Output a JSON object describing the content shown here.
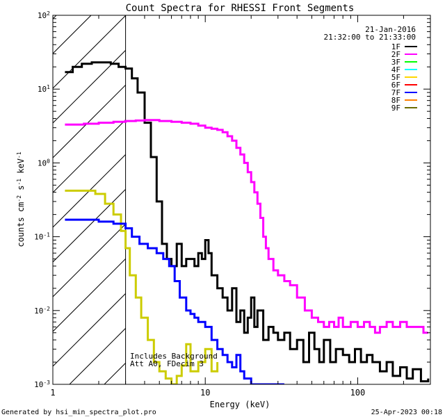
{
  "chart_data": {
    "type": "line",
    "title": "Count Spectra for RHESSI Front Segments",
    "xlabel": "Energy (keV)",
    "ylabel_parts": [
      "counts cm",
      "-2",
      " s",
      "-1",
      " keV",
      "-1"
    ],
    "x_scale": "log",
    "y_scale": "log",
    "xlim": [
      1,
      300
    ],
    "ylim": [
      0.001,
      100
    ],
    "x_ticks": [
      {
        "v": 1,
        "label": "1"
      },
      {
        "v": 10,
        "label": "10"
      },
      {
        "v": 100,
        "label": "100"
      }
    ],
    "y_ticks": [
      {
        "v": 0.001,
        "m": "10",
        "e": "-3"
      },
      {
        "v": 0.01,
        "m": "10",
        "e": "-2"
      },
      {
        "v": 0.1,
        "m": "10",
        "e": "-1"
      },
      {
        "v": 1,
        "m": "10",
        "e": "0"
      },
      {
        "v": 10,
        "m": "10",
        "e": "1"
      },
      {
        "v": 100,
        "m": "10",
        "e": "2"
      }
    ],
    "shaded_region_x": [
      1,
      3
    ],
    "date": "21-Jan-2016",
    "time_range": "21:32:00 to 21:33:00",
    "annotation_lines": [
      "Includes Background",
      "Att A0, FDecim 3"
    ],
    "legend": [
      {
        "name": "1F",
        "color": "#000000"
      },
      {
        "name": "2F",
        "color": "#ff00ff"
      },
      {
        "name": "3F",
        "color": "#00ff00"
      },
      {
        "name": "4F",
        "color": "#00ffff"
      },
      {
        "name": "5F",
        "color": "#ffd700"
      },
      {
        "name": "6F",
        "color": "#ff0000"
      },
      {
        "name": "7F",
        "color": "#0000ff"
      },
      {
        "name": "8F",
        "color": "#ff8000"
      },
      {
        "name": "9F",
        "color": "#6b6b00"
      }
    ],
    "series": [
      {
        "name": "1F",
        "color": "#000000",
        "points": [
          [
            1.2,
            17
          ],
          [
            1.35,
            20
          ],
          [
            1.55,
            22
          ],
          [
            1.8,
            23
          ],
          [
            2.1,
            23
          ],
          [
            2.4,
            22
          ],
          [
            2.7,
            20
          ],
          [
            3.0,
            19
          ],
          [
            3.3,
            14
          ],
          [
            3.6,
            9
          ],
          [
            4.0,
            3.5
          ],
          [
            4.4,
            1.2
          ],
          [
            4.8,
            0.3
          ],
          [
            5.2,
            0.08
          ],
          [
            5.6,
            0.05
          ],
          [
            6.0,
            0.04
          ],
          [
            6.5,
            0.08
          ],
          [
            7.0,
            0.04
          ],
          [
            7.5,
            0.05
          ],
          [
            8.0,
            0.05
          ],
          [
            8.5,
            0.04
          ],
          [
            9.0,
            0.06
          ],
          [
            9.5,
            0.05
          ],
          [
            10,
            0.09
          ],
          [
            10.5,
            0.06
          ],
          [
            11,
            0.03
          ],
          [
            12,
            0.02
          ],
          [
            13,
            0.015
          ],
          [
            14,
            0.01
          ],
          [
            15,
            0.02
          ],
          [
            16,
            0.007
          ],
          [
            17,
            0.01
          ],
          [
            18,
            0.005
          ],
          [
            19,
            0.008
          ],
          [
            20,
            0.015
          ],
          [
            21,
            0.006
          ],
          [
            22,
            0.01
          ],
          [
            24,
            0.004
          ],
          [
            26,
            0.006
          ],
          [
            28,
            0.005
          ],
          [
            30,
            0.004
          ],
          [
            33,
            0.005
          ],
          [
            36,
            0.003
          ],
          [
            40,
            0.004
          ],
          [
            44,
            0.002
          ],
          [
            48,
            0.005
          ],
          [
            52,
            0.003
          ],
          [
            56,
            0.002
          ],
          [
            60,
            0.004
          ],
          [
            66,
            0.002
          ],
          [
            72,
            0.003
          ],
          [
            80,
            0.0025
          ],
          [
            88,
            0.002
          ],
          [
            96,
            0.003
          ],
          [
            105,
            0.002
          ],
          [
            115,
            0.0025
          ],
          [
            125,
            0.002
          ],
          [
            140,
            0.0015
          ],
          [
            155,
            0.002
          ],
          [
            170,
            0.0013
          ],
          [
            190,
            0.0017
          ],
          [
            210,
            0.0012
          ],
          [
            230,
            0.0016
          ],
          [
            260,
            0.0011
          ],
          [
            290,
            0.0012
          ]
        ]
      },
      {
        "name": "2F",
        "color": "#ff00ff",
        "points": [
          [
            1.2,
            3.3
          ],
          [
            1.6,
            3.4
          ],
          [
            2.0,
            3.5
          ],
          [
            2.5,
            3.6
          ],
          [
            3.0,
            3.7
          ],
          [
            3.5,
            3.75
          ],
          [
            4.0,
            3.8
          ],
          [
            5.0,
            3.7
          ],
          [
            6.0,
            3.6
          ],
          [
            7.0,
            3.5
          ],
          [
            8.0,
            3.4
          ],
          [
            9.0,
            3.2
          ],
          [
            10,
            3.0
          ],
          [
            11,
            2.9
          ],
          [
            12,
            2.8
          ],
          [
            13,
            2.6
          ],
          [
            14,
            2.3
          ],
          [
            15,
            2.0
          ],
          [
            16,
            1.6
          ],
          [
            17,
            1.3
          ],
          [
            18,
            1.0
          ],
          [
            19,
            0.75
          ],
          [
            20,
            0.55
          ],
          [
            21,
            0.4
          ],
          [
            22,
            0.28
          ],
          [
            23,
            0.18
          ],
          [
            24,
            0.1
          ],
          [
            25,
            0.07
          ],
          [
            26,
            0.05
          ],
          [
            28,
            0.035
          ],
          [
            30,
            0.03
          ],
          [
            33,
            0.025
          ],
          [
            36,
            0.022
          ],
          [
            40,
            0.015
          ],
          [
            45,
            0.01
          ],
          [
            50,
            0.008
          ],
          [
            55,
            0.007
          ],
          [
            60,
            0.006
          ],
          [
            65,
            0.007
          ],
          [
            70,
            0.006
          ],
          [
            75,
            0.008
          ],
          [
            80,
            0.006
          ],
          [
            90,
            0.007
          ],
          [
            100,
            0.006
          ],
          [
            110,
            0.007
          ],
          [
            120,
            0.006
          ],
          [
            130,
            0.005
          ],
          [
            140,
            0.006
          ],
          [
            155,
            0.007
          ],
          [
            170,
            0.006
          ],
          [
            190,
            0.007
          ],
          [
            210,
            0.006
          ],
          [
            240,
            0.006
          ],
          [
            270,
            0.005
          ],
          [
            290,
            0.005
          ]
        ]
      },
      {
        "name": "5F",
        "color": "#cccc00",
        "points": [
          [
            1.2,
            0.42
          ],
          [
            1.5,
            0.42
          ],
          [
            1.9,
            0.38
          ],
          [
            2.2,
            0.28
          ],
          [
            2.5,
            0.2
          ],
          [
            2.8,
            0.12
          ],
          [
            3.0,
            0.07
          ],
          [
            3.2,
            0.03
          ],
          [
            3.5,
            0.015
          ],
          [
            3.8,
            0.008
          ],
          [
            4.2,
            0.004
          ],
          [
            4.6,
            0.002
          ],
          [
            5.0,
            0.0015
          ],
          [
            5.5,
            0.0012
          ],
          [
            6.0,
            0.001
          ],
          [
            6.5,
            0.0013
          ],
          [
            7.0,
            0.0018
          ],
          [
            7.5,
            0.0035
          ],
          [
            8.0,
            0.0015
          ],
          [
            9.0,
            0.002
          ],
          [
            10,
            0.003
          ],
          [
            11,
            0.0015
          ],
          [
            12,
            0.002
          ]
        ]
      },
      {
        "name": "7F",
        "color": "#0000ff",
        "points": [
          [
            1.2,
            0.17
          ],
          [
            1.6,
            0.17
          ],
          [
            2.0,
            0.16
          ],
          [
            2.5,
            0.15
          ],
          [
            3.0,
            0.13
          ],
          [
            3.3,
            0.1
          ],
          [
            3.7,
            0.08
          ],
          [
            4.2,
            0.07
          ],
          [
            4.8,
            0.06
          ],
          [
            5.3,
            0.05
          ],
          [
            5.8,
            0.04
          ],
          [
            6.3,
            0.025
          ],
          [
            6.8,
            0.015
          ],
          [
            7.5,
            0.01
          ],
          [
            8.0,
            0.009
          ],
          [
            8.5,
            0.008
          ],
          [
            9.0,
            0.007
          ],
          [
            10,
            0.006
          ],
          [
            11,
            0.004
          ],
          [
            12,
            0.003
          ],
          [
            13,
            0.0025
          ],
          [
            14,
            0.002
          ],
          [
            15,
            0.0017
          ],
          [
            16,
            0.0025
          ],
          [
            17,
            0.0015
          ],
          [
            18,
            0.0012
          ],
          [
            20,
            0.001
          ],
          [
            25,
            0.001
          ],
          [
            28,
            0.001
          ],
          [
            33,
            0.001
          ]
        ]
      }
    ]
  },
  "footer": {
    "generated_by": "Generated by hsi_min_spectra_plot.pro",
    "timestamp": "25-Apr-2023 00:18"
  }
}
